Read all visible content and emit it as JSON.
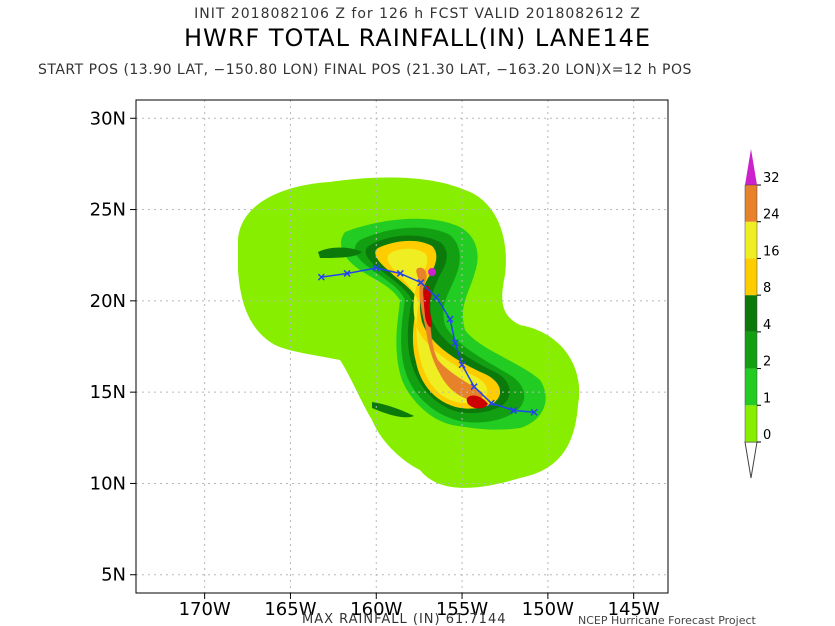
{
  "header": {
    "init_line": "INIT 2018082106 Z for 126 h FCST VALID 2018082612 Z",
    "title": "HWRF TOTAL RAINFALL(IN) LANE14E",
    "position_line": "START POS (13.90 LAT, −150.80 LON)  FINAL POS (21.30 LAT, −163.20 LON)X=12 h POS"
  },
  "axes": {
    "lat_labels": [
      "30N",
      "25N",
      "20N",
      "15N",
      "10N",
      "5N"
    ],
    "lat_values": [
      30,
      25,
      20,
      15,
      10,
      5
    ],
    "lon_labels": [
      "170W",
      "165W",
      "160W",
      "155W",
      "150W",
      "145W"
    ],
    "lon_values": [
      -170,
      -165,
      -160,
      -155,
      -150,
      -145
    ],
    "lat_range": [
      4,
      31
    ],
    "lon_range": [
      -174,
      -143
    ]
  },
  "colorbar": {
    "levels": [
      "0",
      "1",
      "2",
      "4",
      "8",
      "16",
      "24",
      "32"
    ],
    "colors": [
      "#88ee00",
      "#22cc22",
      "#12a012",
      "#0b7a0b",
      "#ffcc00",
      "#eeee22",
      "#e8822a",
      "#cc0000",
      "#cc22cc"
    ]
  },
  "track": {
    "color": "#2244ee",
    "points": [
      {
        "lat": 13.9,
        "lon": -150.8
      },
      {
        "lat": 14.0,
        "lon": -152.0
      },
      {
        "lat": 14.4,
        "lon": -153.3
      },
      {
        "lat": 15.3,
        "lon": -154.3
      },
      {
        "lat": 16.5,
        "lon": -155.0
      },
      {
        "lat": 17.7,
        "lon": -155.4
      },
      {
        "lat": 19.0,
        "lon": -155.7
      },
      {
        "lat": 20.2,
        "lon": -156.5
      },
      {
        "lat": 21.0,
        "lon": -157.4
      },
      {
        "lat": 21.5,
        "lon": -158.6
      },
      {
        "lat": 21.8,
        "lon": -160.0
      },
      {
        "lat": 21.5,
        "lon": -161.7
      },
      {
        "lat": 21.3,
        "lon": -163.2
      }
    ]
  },
  "footer": {
    "max_rainfall": "MAX RAINFALL (IN) 61.7144",
    "credit": "NCEP Hurricane Forecast Project"
  }
}
